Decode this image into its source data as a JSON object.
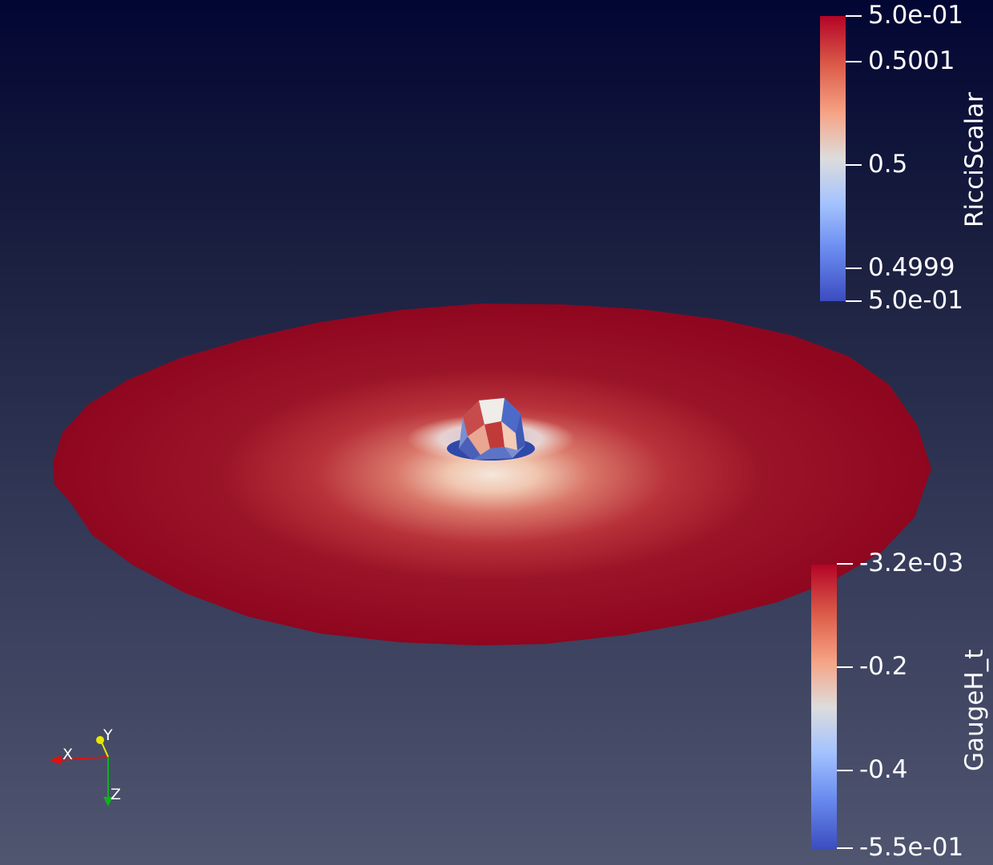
{
  "scene": {
    "background_top": "#020633",
    "background_bottom": "#505670",
    "disk_color": "#8f061f",
    "center_shell_color": "#f0d9c8"
  },
  "colorbars": {
    "ricci": {
      "title": "RicciScalar",
      "ticks": [
        "5.0e-01",
        "0.5001",
        "0.5",
        "0.4999",
        "5.0e-01"
      ],
      "colors": [
        "#b40426",
        "#dddcdc",
        "#3b4cc0"
      ]
    },
    "gauge": {
      "title": "GaugeH_t",
      "ticks": [
        "-3.2e-03",
        "-0.2",
        "-0.4",
        "-5.5e-01"
      ],
      "colors": [
        "#b40426",
        "#dddcdc",
        "#3b4cc0"
      ]
    }
  },
  "orientation_axes": {
    "x_label": "X",
    "y_label": "Y",
    "z_label": "Z",
    "x_color": "#e01010",
    "y_color": "#e8e800",
    "z_color": "#10b020"
  }
}
